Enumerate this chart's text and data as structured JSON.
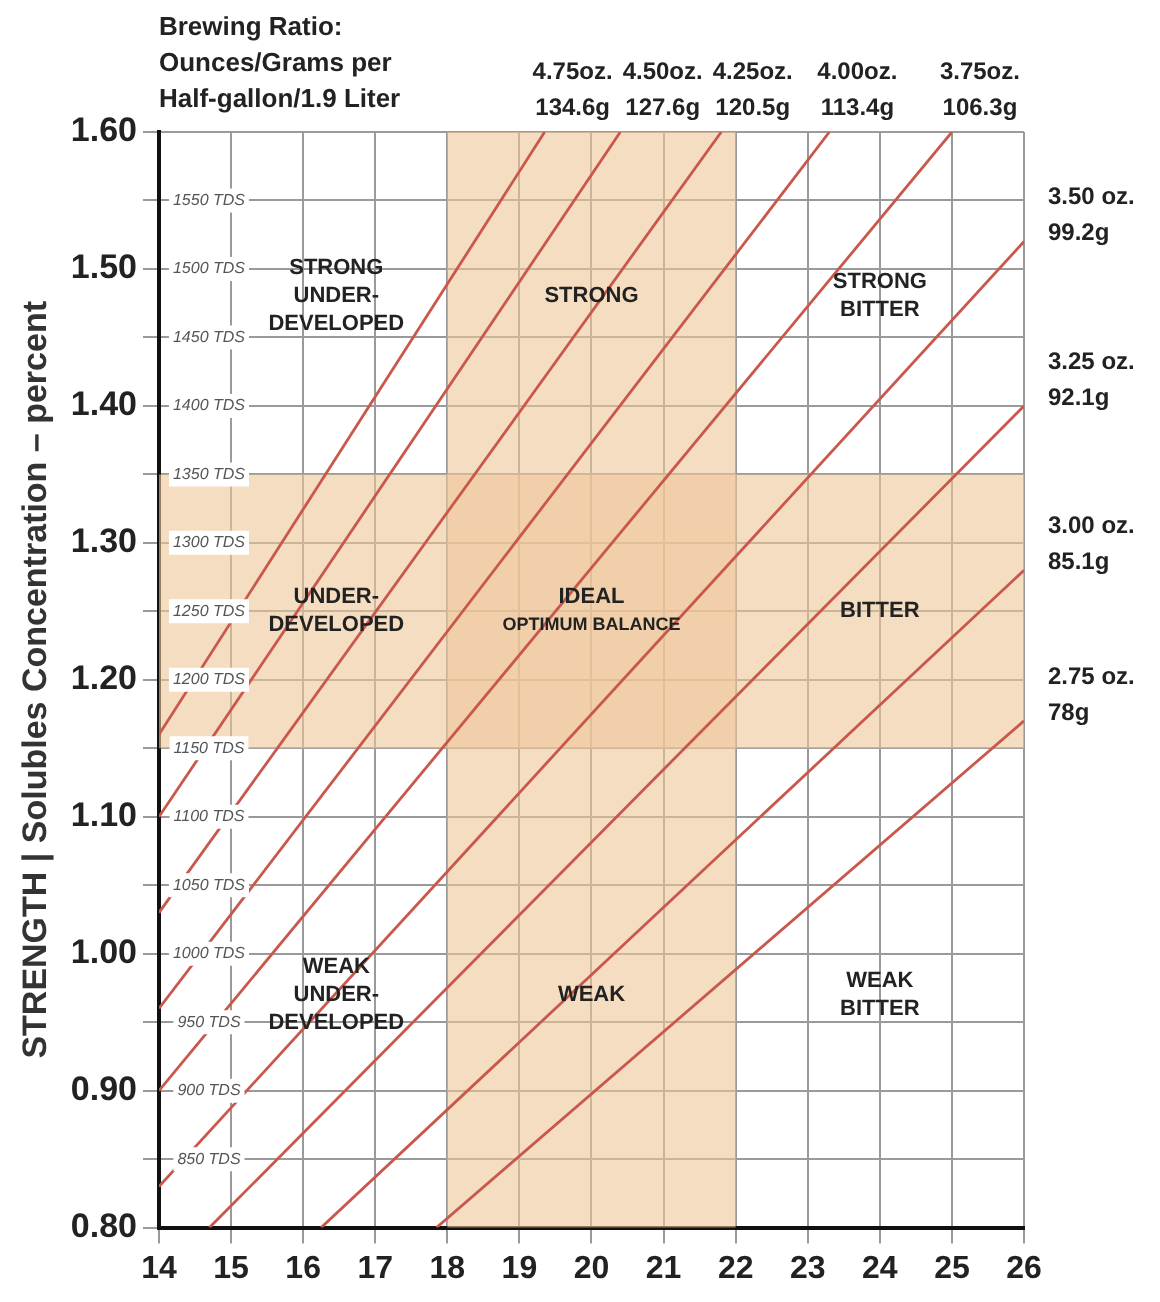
{
  "chart_data": {
    "type": "line",
    "title": "Brewing Ratio:\nOunces/Grams per\nHalf-gallon/1.9 Liter",
    "ylabel": "STRENGTH | Solubles Concentration – percent",
    "xlim": [
      14,
      26
    ],
    "xticks": [
      14,
      15,
      16,
      17,
      18,
      19,
      20,
      21,
      22,
      23,
      24,
      25,
      26
    ],
    "ylim": [
      0.8,
      1.6
    ],
    "yticks": [
      {
        "value": 0.8,
        "label": "0.80"
      },
      {
        "value": 0.85,
        "label": null
      },
      {
        "value": 0.9,
        "label": "0.90"
      },
      {
        "value": 0.95,
        "label": null
      },
      {
        "value": 1.0,
        "label": "1.00"
      },
      {
        "value": 1.05,
        "label": null
      },
      {
        "value": 1.1,
        "label": "1.10"
      },
      {
        "value": 1.15,
        "label": null
      },
      {
        "value": 1.2,
        "label": "1.20"
      },
      {
        "value": 1.25,
        "label": null
      },
      {
        "value": 1.3,
        "label": "1.30"
      },
      {
        "value": 1.35,
        "label": null
      },
      {
        "value": 1.4,
        "label": "1.40"
      },
      {
        "value": 1.45,
        "label": null
      },
      {
        "value": 1.5,
        "label": "1.50"
      },
      {
        "value": 1.55,
        "label": null
      },
      {
        "value": 1.6,
        "label": "1.60"
      }
    ],
    "y2lim": [
      800,
      1600
    ],
    "y2ticks": [
      {
        "value": 850,
        "label": "850 TDS"
      },
      {
        "value": 900,
        "label": "900 TDS"
      },
      {
        "value": 950,
        "label": "950 TDS"
      },
      {
        "value": 1000,
        "label": "1000 TDS"
      },
      {
        "value": 1050,
        "label": "1050 TDS"
      },
      {
        "value": 1100,
        "label": "1100 TDS"
      },
      {
        "value": 1150,
        "label": "1150 TDS"
      },
      {
        "value": 1200,
        "label": "1200 TDS"
      },
      {
        "value": 1250,
        "label": "1250 TDS"
      },
      {
        "value": 1300,
        "label": "1300 TDS"
      },
      {
        "value": 1350,
        "label": "1350 TDS"
      },
      {
        "value": 1400,
        "label": "1400 TDS"
      },
      {
        "value": 1450,
        "label": "1450 TDS"
      },
      {
        "value": 1500,
        "label": "1500 TDS"
      },
      {
        "value": 1550,
        "label": "1550 TDS"
      }
    ],
    "series": [
      {
        "name": "4.75oz.\n134.6g",
        "color": "#c9574c",
        "x": [
          14,
          19.35
        ],
        "values": [
          1.16,
          1.6
        ]
      },
      {
        "name": "4.50oz.\n127.6g",
        "color": "#c9574c",
        "x": [
          14,
          20.4
        ],
        "values": [
          1.1,
          1.6
        ]
      },
      {
        "name": "4.25oz.\n120.5g",
        "color": "#c9574c",
        "x": [
          14,
          21.8
        ],
        "values": [
          1.03,
          1.6
        ]
      },
      {
        "name": "4.00oz.\n113.4g",
        "color": "#c9574c",
        "x": [
          14,
          23.3
        ],
        "values": [
          0.96,
          1.6
        ]
      },
      {
        "name": "3.75oz.\n106.3g",
        "color": "#c9574c",
        "x": [
          14,
          25
        ],
        "values": [
          0.9,
          1.6
        ]
      },
      {
        "name": "3.50 oz.\n99.2g",
        "color": "#c9574c",
        "x": [
          14,
          26
        ],
        "values": [
          0.83,
          1.52
        ]
      },
      {
        "name": "3.25 oz.\n92.1g",
        "color": "#c9574c",
        "x": [
          14.7,
          26
        ],
        "values": [
          0.8,
          1.4
        ]
      },
      {
        "name": "3.00 oz.\n85.1g",
        "color": "#c9574c",
        "x": [
          16.25,
          26
        ],
        "values": [
          0.8,
          1.28
        ]
      },
      {
        "name": "2.75 oz.\n78g",
        "color": "#c9574c",
        "x": [
          17.85,
          26
        ],
        "values": [
          0.8,
          1.17
        ]
      }
    ],
    "bands": [
      {
        "axis": "x",
        "from": 18,
        "to": 22,
        "color": "#eec79a"
      },
      {
        "axis": "y",
        "from": 1.15,
        "to": 1.35,
        "color": "#eec79a"
      }
    ],
    "annotations": [
      "STRONG\nUNDER-\nDEVELOPED",
      "STRONG",
      "STRONG\nBITTER",
      "UNDER-\nDEVELOPED",
      "IDEAL\nOPTIMUM BALANCE",
      "BITTER",
      "WEAK\nUNDER-\nDEVELOPED",
      "WEAK",
      "WEAK\nBITTER"
    ],
    "grid": true,
    "legend": false,
    "marker": "none",
    "line_style": "solid"
  }
}
